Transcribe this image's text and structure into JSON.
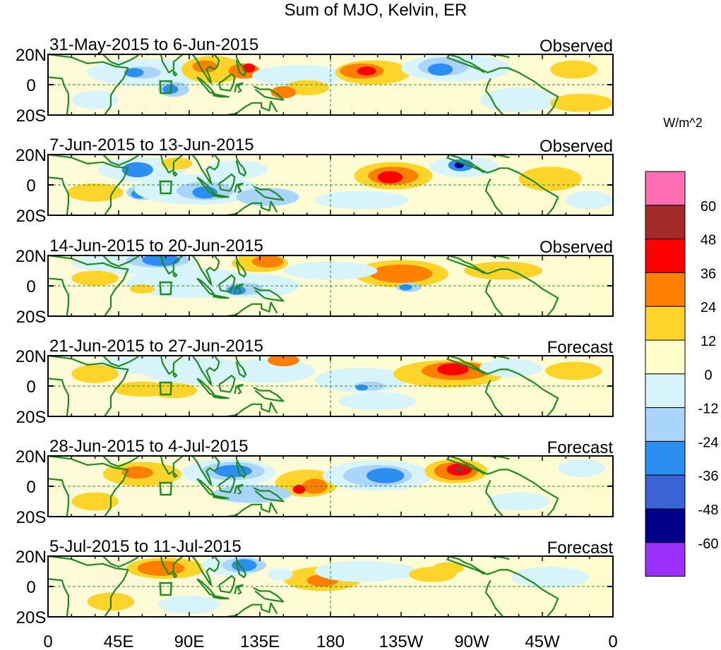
{
  "chart_data": {
    "type": "heatmap",
    "title": "Sum of MJO, Kelvin, ER",
    "units": "W/m^2",
    "x_ticks": [
      "0",
      "45E",
      "90E",
      "135E",
      "180",
      "135W",
      "90W",
      "45W",
      "0"
    ],
    "y_ticks": [
      "20N",
      "0",
      "20S"
    ],
    "panels": [
      {
        "period": "31-May-2015 to 6-Jun-2015",
        "status": "Observed"
      },
      {
        "period": "7-Jun-2015 to 13-Jun-2015",
        "status": "Observed"
      },
      {
        "period": "14-Jun-2015 to 20-Jun-2015",
        "status": "Observed"
      },
      {
        "period": "21-Jun-2015 to 27-Jun-2015",
        "status": "Forecast"
      },
      {
        "period": "28-Jun-2015 to 4-Jul-2015",
        "status": "Forecast"
      },
      {
        "period": "5-Jul-2015 to 11-Jul-2015",
        "status": "Forecast"
      }
    ],
    "colorbar": {
      "labels": [
        "60",
        "48",
        "36",
        "24",
        "12",
        "0",
        "-12",
        "-24",
        "-36",
        "-48",
        "-60"
      ],
      "colors": [
        "#ff6eb4",
        "#a52a2a",
        "#ff0000",
        "#ff7f00",
        "#ffd42a",
        "#ffffcc",
        "#d8f4fb",
        "#a9d4fb",
        "#2b8ef0",
        "#3a64d6",
        "#00008b",
        "#9b30ff"
      ]
    },
    "colors": {
      "coast": "#1f8a1f",
      "grid": "#2e8b2e",
      "box": "#1f8a1f"
    }
  }
}
